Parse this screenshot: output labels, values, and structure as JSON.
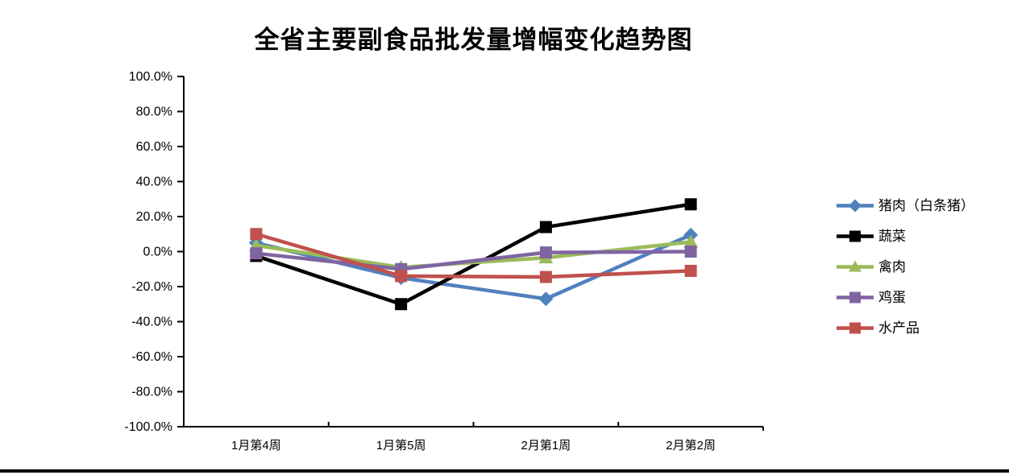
{
  "title": "全省主要副食品批发量增幅变化趋势图",
  "chart_data": {
    "type": "line",
    "title": "全省主要副食品批发量增幅变化趋势图",
    "categories": [
      "1月第4周",
      "1月第5周",
      "2月第1周",
      "2月第2周"
    ],
    "series": [
      {
        "name": "猪肉（白条猪）",
        "color": "#4F81BD",
        "marker": "diamond",
        "values": [
          5,
          -15,
          -27,
          9.5
        ]
      },
      {
        "name": "蔬菜",
        "color": "#000000",
        "marker": "square",
        "values": [
          -2.5,
          -30,
          14,
          27
        ]
      },
      {
        "name": "禽肉",
        "color": "#9BBB59",
        "marker": "triangle",
        "values": [
          3.5,
          -9,
          -3.5,
          5.5
        ]
      },
      {
        "name": "鸡蛋",
        "color": "#8064A2",
        "marker": "square",
        "values": [
          -1,
          -10,
          -0.5,
          0
        ]
      },
      {
        "name": "水产品",
        "color": "#C0504D",
        "marker": "square",
        "values": [
          10,
          -14,
          -14.5,
          -11
        ]
      }
    ],
    "ylim": [
      -100,
      100
    ],
    "ytick_step": 20,
    "ytick_labels": [
      "100.0%",
      "80.0%",
      "60.0%",
      "40.0%",
      "20.0%",
      "0.0%",
      "-20.0%",
      "-40.0%",
      "-60.0%",
      "-80.0%",
      "-100.0%"
    ],
    "xlabel": "",
    "ylabel": "",
    "grid": false,
    "legend_position": "right",
    "axis_color": "#000000",
    "background": "#ffffff"
  }
}
